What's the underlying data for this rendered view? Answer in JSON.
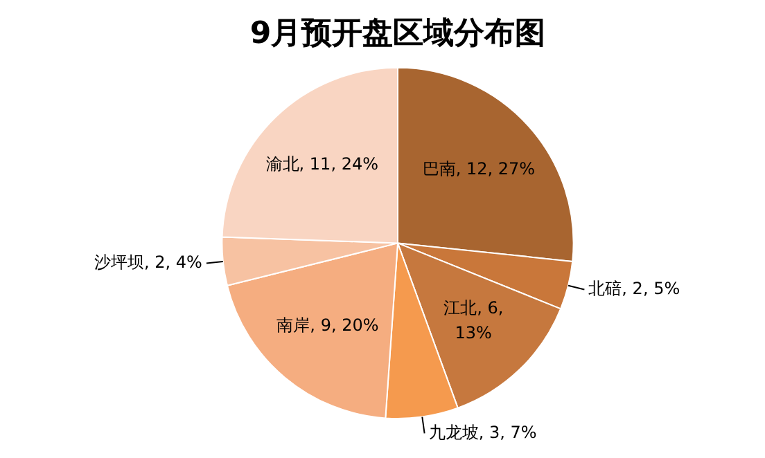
{
  "chart_data": {
    "type": "pie",
    "title": "9月预开盘区域分布图",
    "categories": [
      "巴南",
      "北碚",
      "江北",
      "九龙坡",
      "南岸",
      "沙坪坝",
      "渝北"
    ],
    "values": [
      12,
      2,
      6,
      3,
      9,
      2,
      11
    ],
    "colors": [
      "#a86530",
      "#c9773a",
      "#c6783e",
      "#f59a4e",
      "#f5ad80",
      "#f7c2a2",
      "#f9d5c2"
    ],
    "value_labels": [
      "12, 27%",
      "2, 5%",
      "6, 13%",
      "3, 7%",
      "9, 20%",
      "2, 4%",
      "11, 24%"
    ],
    "legend": false
  }
}
